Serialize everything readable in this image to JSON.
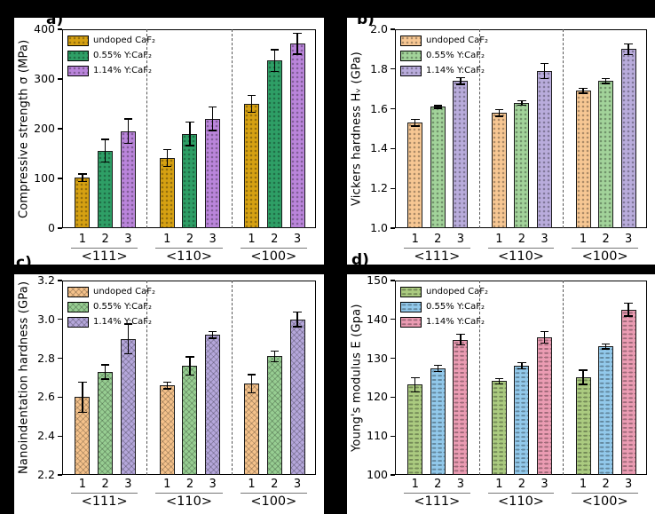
{
  "figure": {
    "background": "#000000",
    "panel_labels": {
      "a": "a)",
      "b": "b)",
      "c": "c)",
      "d": "d)"
    }
  },
  "chart_data": [
    {
      "panel": "a",
      "type": "bar",
      "ylabel": "Compressive strength σ (MPa)",
      "ylim": [
        0,
        400
      ],
      "yticks": [
        0,
        100,
        200,
        300,
        400
      ],
      "ytick_labels": [
        "0",
        "100",
        "200",
        "300",
        "400"
      ],
      "groups": [
        "<111>",
        "<110>",
        "<100>"
      ],
      "bar_labels": [
        "1",
        "2",
        "3"
      ],
      "legend": [
        "undoped CaF₂",
        "0.55% Y:CaF₂",
        "1.14% Y:CaF₂"
      ],
      "colors": [
        "#D6A112",
        "#2E9F66",
        "#BA85DB"
      ],
      "pattern": "dots",
      "legend_position": "top-left",
      "grid": false,
      "series": [
        {
          "name": "undoped CaF₂",
          "values": [
            101,
            141,
            250
          ],
          "errors": [
            9,
            18,
            18
          ]
        },
        {
          "name": "0.55% Y:CaF₂",
          "values": [
            156,
            190,
            337
          ],
          "errors": [
            24,
            25,
            23
          ]
        },
        {
          "name": "1.14% Y:CaF₂",
          "values": [
            195,
            220,
            371
          ],
          "errors": [
            26,
            25,
            22
          ]
        }
      ]
    },
    {
      "panel": "b",
      "type": "bar",
      "ylabel": "Vickers hardness Hᵥ (GPa)",
      "ylim": [
        1.0,
        2.0
      ],
      "yticks": [
        1.0,
        1.2,
        1.4,
        1.6,
        1.8,
        2.0
      ],
      "ytick_labels": [
        "1.0",
        "1.2",
        "1.4",
        "1.6",
        "1.8",
        "2.0"
      ],
      "groups": [
        "<111>",
        "<110>",
        "<100>"
      ],
      "bar_labels": [
        "1",
        "2",
        "3"
      ],
      "legend": [
        "undoped CaF₂",
        "0.55% Y:CaF₂",
        "1.14% Y:CaF₂"
      ],
      "colors": [
        "#F7C793",
        "#A2D39A",
        "#B9ACDC"
      ],
      "pattern": "dots",
      "legend_position": "top-left",
      "grid": false,
      "series": [
        {
          "name": "undoped CaF₂",
          "values": [
            1.53,
            1.58,
            1.69
          ],
          "errors": [
            0.02,
            0.02,
            0.015
          ]
        },
        {
          "name": "0.55% Y:CaF₂",
          "values": [
            1.61,
            1.63,
            1.74
          ],
          "errors": [
            0.01,
            0.015,
            0.015
          ]
        },
        {
          "name": "1.14% Y:CaF₂",
          "values": [
            1.74,
            1.79,
            1.9
          ],
          "errors": [
            0.02,
            0.04,
            0.03
          ]
        }
      ]
    },
    {
      "panel": "c",
      "type": "bar",
      "ylabel": "Nanoindentation hardness (GPa)",
      "ylim": [
        2.2,
        3.2
      ],
      "yticks": [
        2.2,
        2.4,
        2.6,
        2.8,
        3.0,
        3.2
      ],
      "ytick_labels": [
        "2.2",
        "2.4",
        "2.6",
        "2.8",
        "3.0",
        "3.2"
      ],
      "groups": [
        "<111>",
        "<110>",
        "<100>"
      ],
      "bar_labels": [
        "1",
        "2",
        "3"
      ],
      "legend": [
        "undoped CaF₂",
        "0.55% Y:CaF₂",
        "1.14% Y:CaF₂"
      ],
      "colors": [
        "#F5C28B",
        "#97CE92",
        "#B5A7DB"
      ],
      "pattern": "cross",
      "legend_position": "top-left",
      "grid": false,
      "series": [
        {
          "name": "undoped CaF₂",
          "values": [
            2.6,
            2.66,
            2.67
          ],
          "errors": [
            0.08,
            0.02,
            0.05
          ]
        },
        {
          "name": "0.55% Y:CaF₂",
          "values": [
            2.73,
            2.76,
            2.81
          ],
          "errors": [
            0.04,
            0.05,
            0.03
          ]
        },
        {
          "name": "1.14% Y:CaF₂",
          "values": [
            2.9,
            2.92,
            3.0
          ],
          "errors": [
            0.08,
            0.02,
            0.04
          ]
        }
      ]
    },
    {
      "panel": "d",
      "type": "bar",
      "ylabel": "Young's modulus E (Gpa)",
      "ylim": [
        100,
        150
      ],
      "yticks": [
        100,
        110,
        120,
        130,
        140,
        150
      ],
      "ytick_labels": [
        "100",
        "110",
        "120",
        "130",
        "140",
        "150"
      ],
      "groups": [
        "<111>",
        "<110>",
        "<100>"
      ],
      "bar_labels": [
        "1",
        "2",
        "3"
      ],
      "legend": [
        "undoped CaF₂",
        "0.55% Y:CaF₂",
        "1.14% Y:CaF₂"
      ],
      "colors": [
        "#ABCB80",
        "#92C9EB",
        "#EB9CB3"
      ],
      "pattern": "dash",
      "legend_position": "top-left",
      "grid": false,
      "series": [
        {
          "name": "undoped CaF₂",
          "values": [
            123.2,
            124.1,
            125.1
          ],
          "errors": [
            2.0,
            0.8,
            2.0
          ]
        },
        {
          "name": "0.55% Y:CaF₂",
          "values": [
            127.4,
            128.1,
            133.1
          ],
          "errors": [
            1.0,
            1.0,
            0.8
          ]
        },
        {
          "name": "1.14% Y:CaF₂",
          "values": [
            134.8,
            135.4,
            142.5
          ],
          "errors": [
            1.5,
            1.7,
            1.8
          ]
        }
      ]
    }
  ]
}
